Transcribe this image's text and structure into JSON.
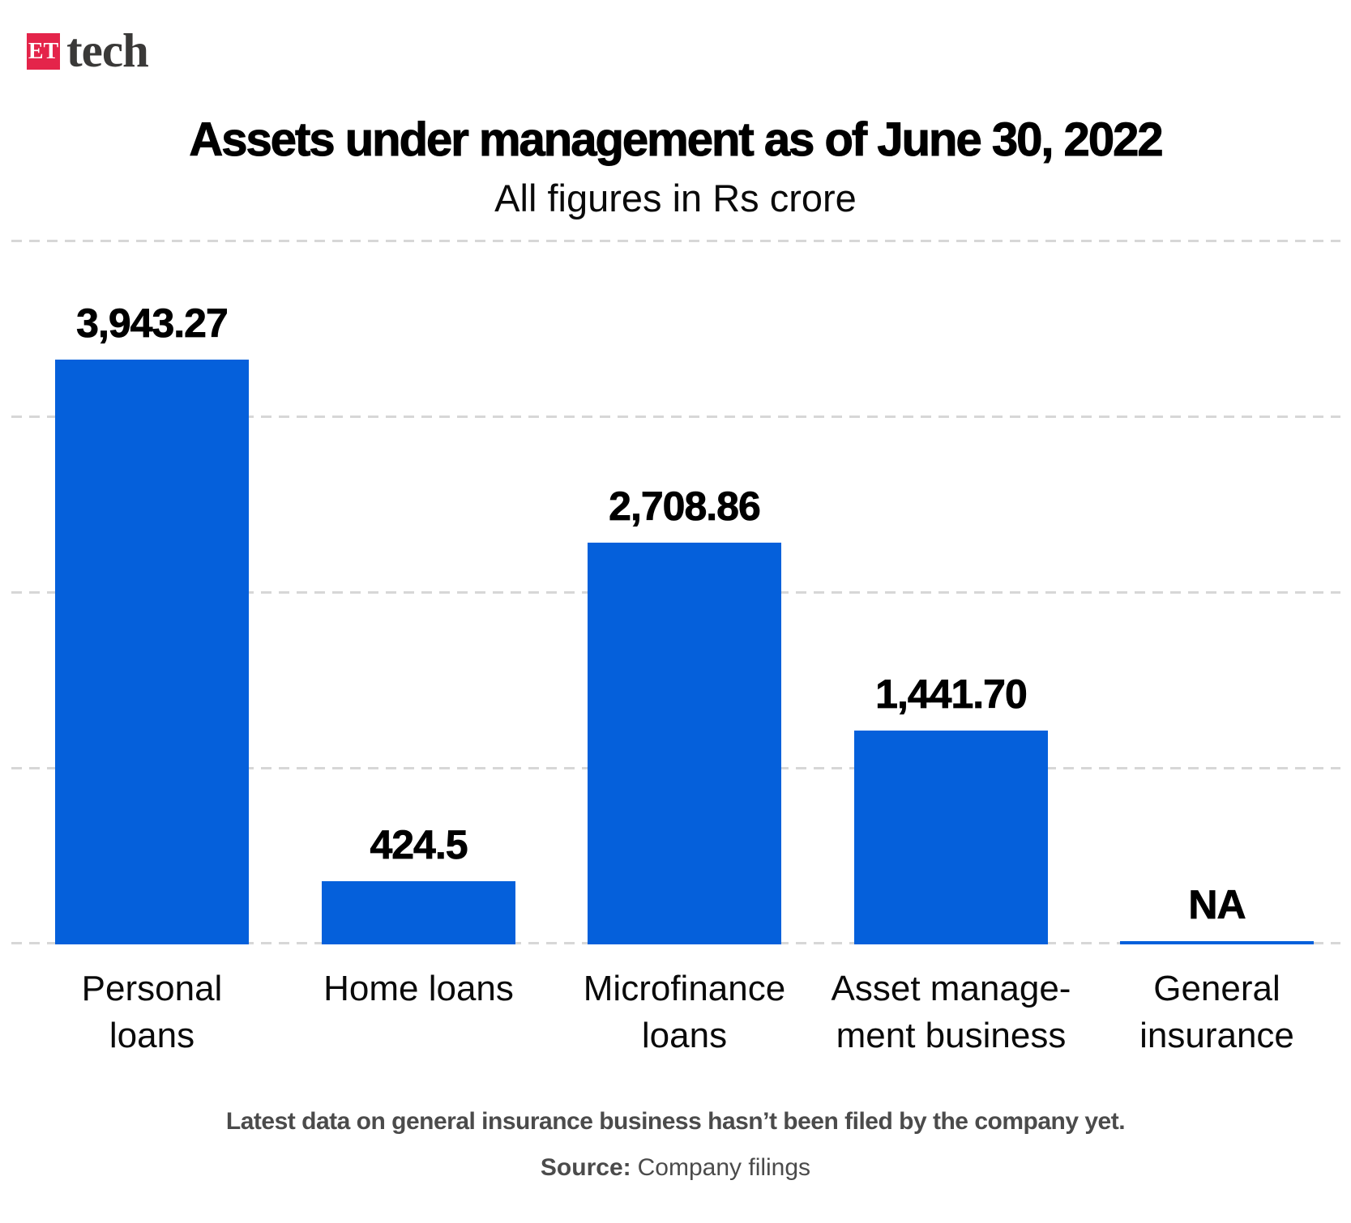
{
  "logo": {
    "et_box_text": "ET",
    "wordmark": "tech",
    "box_color": "#e4244a"
  },
  "chart_data": {
    "type": "bar",
    "title": "Assets under management as of June 30, 2022",
    "subtitle": "All figures in Rs crore",
    "unit": "Rs crore",
    "categories": [
      "Personal loans",
      "Home loans",
      "Microfinance loans",
      "Asset management business",
      "General insurance"
    ],
    "category_label_lines": [
      [
        "Personal",
        "loans"
      ],
      [
        "Home loans"
      ],
      [
        "Microfinance",
        "loans"
      ],
      [
        "Asset manage-",
        "ment business"
      ],
      [
        "General",
        "insurance"
      ]
    ],
    "values": [
      3943.27,
      424.5,
      2708.86,
      1441.7,
      null
    ],
    "value_labels": [
      "3,943.27",
      "424.5",
      "2,708.86",
      "1,441.70",
      "NA"
    ],
    "bar_color": "#0560db",
    "gridline_color": "#d7d7d7",
    "grid": "horizontal dashed",
    "ylim": [
      0,
      4760
    ],
    "legend_position": "none"
  },
  "footer": {
    "note": "Latest data on general insurance business hasn’t been filed by the company yet.",
    "source_label": "Source:",
    "source_value": "Company filings"
  }
}
